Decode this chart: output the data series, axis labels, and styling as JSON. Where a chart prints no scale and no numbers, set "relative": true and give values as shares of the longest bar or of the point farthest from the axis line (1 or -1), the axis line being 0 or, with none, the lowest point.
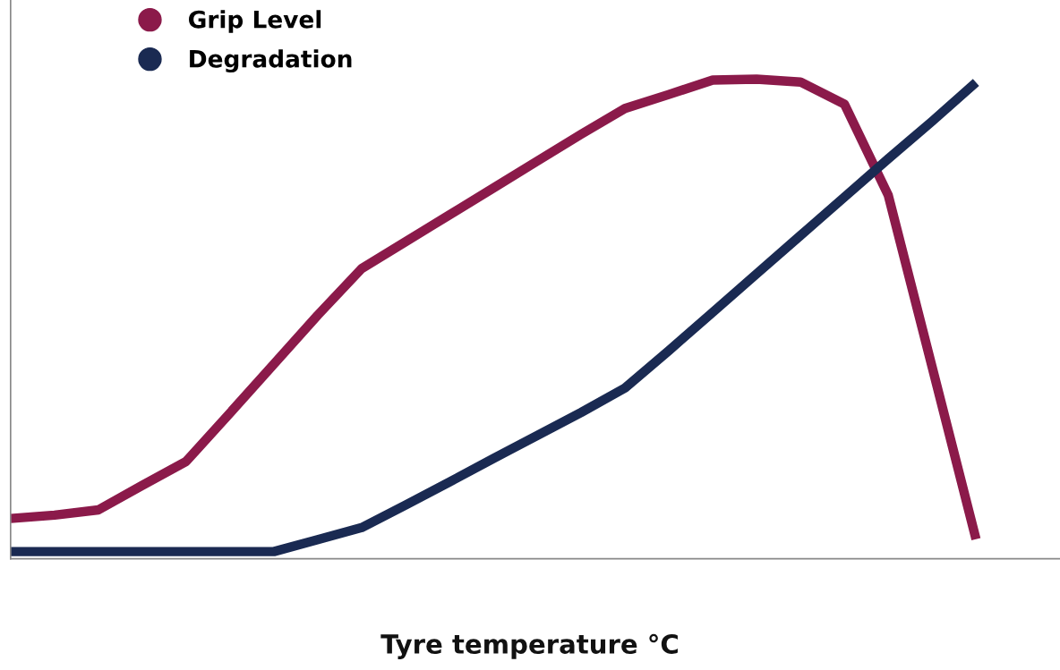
{
  "chart_data": {
    "type": "line",
    "relative": true,
    "xlabel": "Tyre temperature °C",
    "legend": "top left",
    "marker": "none",
    "line_style": "solid",
    "categories": [
      null,
      null,
      null,
      null,
      null,
      null,
      null,
      null,
      null,
      null,
      null,
      null,
      null,
      null,
      null,
      null,
      null,
      null,
      null,
      null,
      null,
      null,
      null
    ],
    "series": [
      {
        "name": "Grip Level",
        "color": "#8b1a4a",
        "values": [
          0.084,
          0.091,
          0.102,
          0.153,
          0.203,
          0.304,
          0.406,
          0.508,
          0.605,
          0.661,
          0.717,
          0.773,
          0.829,
          0.885,
          0.939,
          0.968,
          0.998,
          1.0,
          0.994,
          0.948,
          0.758,
          0.4,
          0.041
        ]
      },
      {
        "name": "Degradation",
        "color": "#1a2a52",
        "values": [
          0.015,
          0.015,
          0.015,
          0.015,
          0.015,
          0.015,
          0.015,
          0.04,
          0.065,
          0.112,
          0.16,
          0.209,
          0.257,
          0.305,
          0.356,
          0.434,
          0.514,
          0.594,
          0.674,
          0.754,
          0.834,
          0.912,
          0.993
        ]
      }
    ]
  }
}
